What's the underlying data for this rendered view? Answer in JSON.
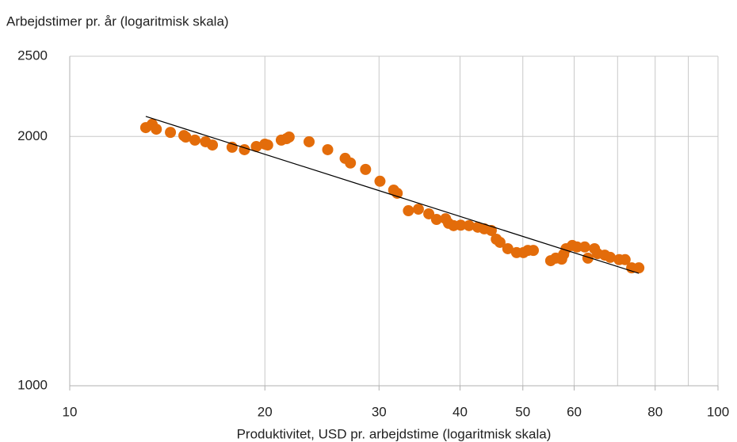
{
  "chart_data": {
    "type": "scatter",
    "ylabel": "Arbejdstimer pr. år (logaritmisk skala)",
    "xlabel": "Produktivitet, USD pr. arbejdstime (logaritmisk skala)",
    "xlog": true,
    "ylog": true,
    "grid": true,
    "xlim": [
      10,
      100
    ],
    "ylim": [
      1000,
      2500
    ],
    "xticks": [
      10,
      20,
      30,
      40,
      50,
      60,
      80,
      100
    ],
    "xgrid": [
      10,
      20,
      30,
      40,
      50,
      60,
      70,
      80,
      90,
      100
    ],
    "yticks": [
      1000,
      2000,
      2500
    ],
    "color": "#e36c0a",
    "x": [
      13.1,
      13.4,
      13.6,
      14.3,
      15.0,
      15.1,
      15.6,
      16.2,
      16.6,
      17.8,
      18.6,
      19.4,
      20.0,
      20.2,
      21.2,
      21.6,
      21.8,
      23.4,
      25.0,
      26.6,
      27.1,
      28.6,
      30.1,
      31.6,
      32.0,
      33.3,
      34.5,
      35.8,
      36.8,
      38.0,
      38.4,
      39.1,
      40.1,
      41.3,
      42.6,
      43.6,
      44.7,
      45.5,
      46.1,
      47.4,
      48.9,
      50.1,
      50.9,
      51.9,
      55.2,
      56.2,
      57.4,
      57.8,
      58.3,
      59.6,
      60.6,
      62.3,
      63.0,
      64.5,
      65.2,
      66.9,
      68.2,
      70.4,
      71.9,
      73.6,
      75.5
    ],
    "values": [
      2050,
      2069,
      2041,
      2023,
      2005,
      1997,
      1980,
      1971,
      1953,
      1941,
      1928,
      1945,
      1958,
      1953,
      1980,
      1988,
      1997,
      1971,
      1928,
      1882,
      1858,
      1825,
      1766,
      1723,
      1708,
      1627,
      1634,
      1613,
      1588,
      1591,
      1571,
      1561,
      1563,
      1561,
      1554,
      1547,
      1540,
      1503,
      1490,
      1464,
      1448,
      1448,
      1457,
      1457,
      1416,
      1426,
      1422,
      1441,
      1464,
      1477,
      1471,
      1471,
      1426,
      1464,
      1444,
      1438,
      1429,
      1420,
      1420,
      1388,
      1388
    ],
    "trendline": {
      "color": "#000000",
      "x": [
        13.1,
        75.5
      ],
      "y": [
        2115,
        1367
      ]
    }
  }
}
